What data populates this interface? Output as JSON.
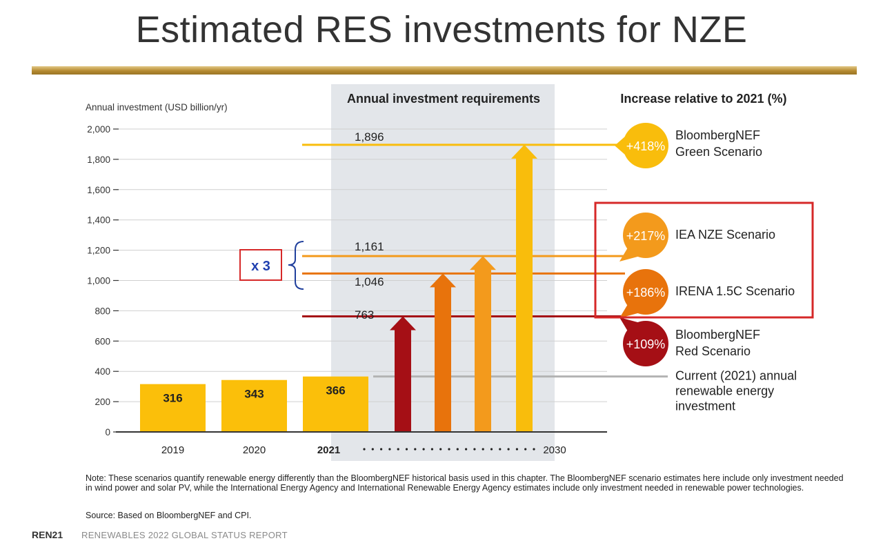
{
  "slide": {
    "title": "Estimated RES investments for NZE"
  },
  "chart_data": {
    "type": "bar",
    "ylabel": "Annual investment (USD billion/yr)",
    "ylim": [
      0,
      2000
    ],
    "yticks": [
      0,
      200,
      400,
      600,
      800,
      1000,
      1200,
      1400,
      1600,
      1800,
      2000
    ],
    "ytick_labels": [
      "0",
      "200",
      "400",
      "600",
      "800",
      "1,000",
      "1,200",
      "1,400",
      "1,600",
      "1,800",
      "2,000"
    ],
    "grid": true,
    "historical": [
      {
        "year": "2019",
        "value": 316,
        "label": "316"
      },
      {
        "year": "2020",
        "value": 343,
        "label": "343"
      },
      {
        "year": "2021",
        "value": 366,
        "label": "366"
      }
    ],
    "x_end_label": "2030",
    "requirements_header": "Annual investment requirements",
    "increase_header": "Increase relative to 2021 (%)",
    "scenarios": [
      {
        "name_lines": [
          "BloombergNEF",
          "Red Scenario"
        ],
        "value": 763,
        "value_label": "763",
        "increase": "+109%",
        "color": "#a50f15"
      },
      {
        "name_lines": [
          "IRENA 1.5C Scenario"
        ],
        "value": 1046,
        "value_label": "1,046",
        "increase": "+186%",
        "color": "#e8730c"
      },
      {
        "name_lines": [
          "IEA NZE Scenario"
        ],
        "value": 1161,
        "value_label": "1,161",
        "increase": "+217%",
        "color": "#f39a1c"
      },
      {
        "name_lines": [
          "BloombergNEF",
          "Green Scenario"
        ],
        "value": 1896,
        "value_label": "1,896",
        "increase": "+418%",
        "color": "#f9bd0c"
      }
    ],
    "current_line": {
      "value": 366,
      "label_lines": [
        "Current (2021) annual",
        "renewable energy",
        "investment"
      ]
    },
    "bar_color": "#fbbf0a",
    "annotation": "x 3"
  },
  "note": "Note: These scenarios quantify renewable energy differently than the BloombergNEF historical basis used in this chapter. The BloombergNEF scenario estimates here include only investment needed in wind power and solar PV, while the International Energy Agency and International Renewable Energy Agency estimates include only investment needed in renewable power technologies.",
  "source": "Source: Based on BloombergNEF and CPI.",
  "footer": {
    "brand": "REN21",
    "report": "RENEWABLES 2022 GLOBAL STATUS REPORT"
  }
}
